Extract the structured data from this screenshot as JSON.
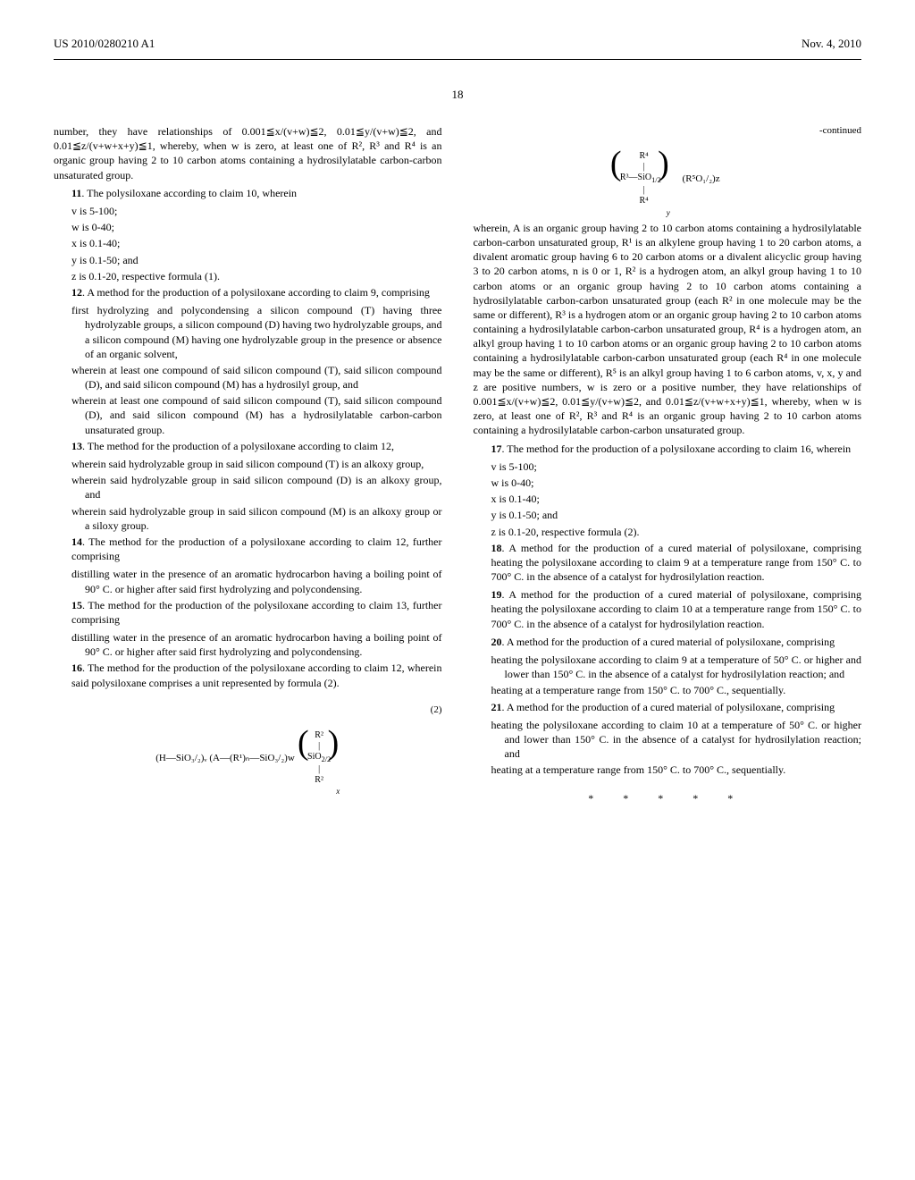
{
  "header": {
    "patent_number": "US 2010/0280210 A1",
    "date": "Nov. 4, 2010"
  },
  "page_number": "18",
  "left_column": {
    "top_text": "number, they have relationships of 0.001≦x/(v+w)≦2, 0.01≦y/(v+w)≦2, and 0.01≦z/(v+w+x+y)≦1, whereby, when w is zero, at least one of R², R³ and R⁴ is an organic group having 2 to 10 carbon atoms containing a hydrosilylatable carbon-carbon unsaturated group.",
    "claim11": {
      "num": "11",
      "text": ". The polysiloxane according to claim 10, wherein",
      "items": [
        "v is 5-100;",
        "w is 0-40;",
        "x is 0.1-40;",
        "y is 0.1-50; and",
        "z is 0.1-20, respective formula (1)."
      ]
    },
    "claim12": {
      "num": "12",
      "text": ". A method for the production of a polysiloxane according to claim 9, comprising",
      "items": [
        "first hydrolyzing and polycondensing a silicon compound (T) having three hydrolyzable groups, a silicon compound (D) having two hydrolyzable groups, and a silicon compound (M) having one hydrolyzable group in the presence or absence of an organic solvent,",
        "wherein at least one compound of said silicon compound (T), said silicon compound (D), and said silicon compound (M) has a hydrosilyl group, and",
        "wherein at least one compound of said silicon compound (T), said silicon compound (D), and said silicon compound (M) has a hydrosilylatable carbon-carbon unsaturated group."
      ]
    },
    "claim13": {
      "num": "13",
      "text": ". The method for the production of a polysiloxane according to claim 12,",
      "items": [
        "wherein said hydrolyzable group in said silicon compound (T) is an alkoxy group,",
        "wherein said hydrolyzable group in said silicon compound (D) is an alkoxy group, and",
        "wherein said hydrolyzable group in said silicon compound (M) is an alkoxy group or a siloxy group."
      ]
    },
    "claim14": {
      "num": "14",
      "text": ". The method for the production of a polysiloxane according to claim 12, further comprising",
      "items": [
        "distilling water in the presence of an aromatic hydrocarbon having a boiling point of 90° C. or higher after said first hydrolyzing and polycondensing."
      ]
    },
    "claim15": {
      "num": "15",
      "text": ". The method for the production of the polysiloxane according to claim 13, further comprising",
      "items": [
        "distilling water in the presence of an aromatic hydrocarbon having a boiling point of 90° C. or higher after said first hydrolyzing and polycondensing."
      ]
    },
    "claim16": {
      "num": "16",
      "text": ". The method for the production of the polysiloxane according to claim 12, wherein said polysiloxane comprises a unit represented by formula (2).",
      "formula_label": "(2)",
      "formula_text": "(H—SiO₃/₂)ᵥ   (A—(R¹)ₙ—SiO₃/₂)w"
    }
  },
  "right_column": {
    "continued": "-continued",
    "formula_tail": "(R⁵O₁/₂)z",
    "wherein_text": "wherein, A is an organic group having 2 to 10 carbon atoms containing a hydrosilylatable carbon-carbon unsaturated group, R¹ is an alkylene group having 1 to 20 carbon atoms, a divalent aromatic group having 6 to 20 carbon atoms or a divalent alicyclic group having 3 to 20 carbon atoms, n is 0 or 1, R² is a hydrogen atom, an alkyl group having 1 to 10 carbon atoms or an organic group having 2 to 10 carbon atoms containing a hydrosilylatable carbon-carbon unsaturated group (each R² in one molecule may be the same or different), R³ is a hydrogen atom or an organic group having 2 to 10 carbon atoms containing a hydrosilylatable carbon-carbon unsaturated group, R⁴ is a hydrogen atom, an alkyl group having 1 to 10 carbon atoms or an organic group having 2 to 10 carbon atoms containing a hydrosilylatable carbon-carbon unsaturated group (each R⁴ in one molecule may be the same or different), R⁵ is an alkyl group having 1 to 6 carbon atoms, v, x, y and z are positive numbers, w is zero or a positive number, they have relationships of 0.001≦x/(v+w)≦2, 0.01≦y/(v+w)≦2, and 0.01≦z/(v+w+x+y)≦1, whereby, when w is zero, at least one of R², R³ and R⁴ is an organic group having 2 to 10 carbon atoms containing a hydrosilylatable carbon-carbon unsaturated group.",
    "claim17": {
      "num": "17",
      "text": ". The method for the production of a polysiloxane according to claim 16, wherein",
      "items": [
        "v is 5-100;",
        "w is 0-40;",
        "x is 0.1-40;",
        "y is 0.1-50; and",
        "z is 0.1-20, respective formula (2)."
      ]
    },
    "claim18": {
      "num": "18",
      "text": ". A method for the production of a cured material of polysiloxane, comprising heating the polysiloxane according to claim 9 at a temperature range from 150° C. to 700° C. in the absence of a catalyst for hydrosilylation reaction."
    },
    "claim19": {
      "num": "19",
      "text": ". A method for the production of a cured material of polysiloxane, comprising heating the polysiloxane according to claim 10 at a temperature range from 150° C. to 700° C. in the absence of a catalyst for hydrosilylation reaction."
    },
    "claim20": {
      "num": "20",
      "text": ". A method for the production of a cured material of polysiloxane, comprising",
      "items": [
        "heating the polysiloxane according to claim 9 at a temperature of 50° C. or higher and lower than 150° C. in the absence of a catalyst for hydrosilylation reaction; and",
        "heating at a temperature range from 150° C. to 700° C., sequentially."
      ]
    },
    "claim21": {
      "num": "21",
      "text": ". A method for the production of a cured material of polysiloxane, comprising",
      "items": [
        "heating the polysiloxane according to claim 10 at a temperature of 50° C. or higher and lower than 150° C. in the absence of a catalyst for hydrosilylation reaction; and",
        "heating at a temperature range from 150° C. to 700° C., sequentially."
      ]
    },
    "stars": "*    *    *    *    *"
  }
}
